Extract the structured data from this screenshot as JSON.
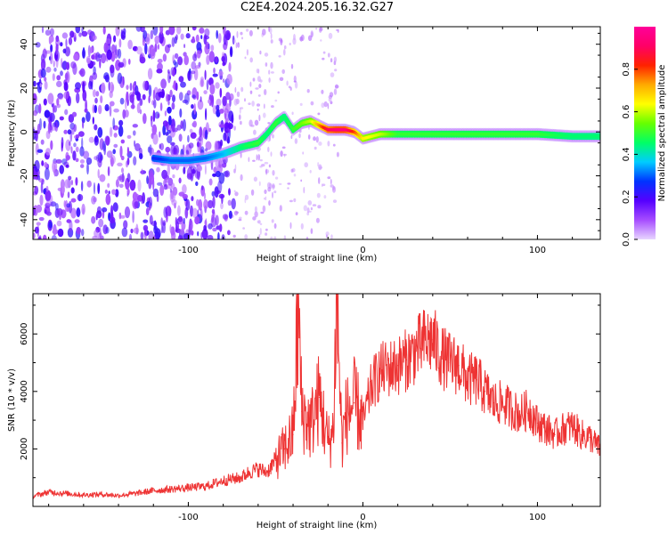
{
  "title": "C2E4.2024.205.16.32.G27",
  "chart_data": [
    {
      "type": "heatmap",
      "xlabel": "Height of straight line (km)",
      "ylabel": "Frequency (Hz)",
      "xlim": [
        -189,
        136
      ],
      "ylim": [
        -49,
        48
      ],
      "xticks": [
        -100,
        0,
        100
      ],
      "yticks": [
        -40,
        -20,
        0,
        20,
        40
      ],
      "xtick_labels": [
        "-100",
        "0",
        "100"
      ],
      "ytick_labels": [
        "-40",
        "-20",
        "0",
        "20",
        "40"
      ],
      "colorbar": {
        "label": "Normalized spectral amplitude",
        "range": [
          0,
          1
        ],
        "ticks": [
          0.0,
          0.2,
          0.4,
          0.6,
          0.8
        ],
        "tick_labels": [
          "0.0",
          "0.2",
          "0.4",
          "0.6",
          "0.8"
        ],
        "colors": [
          "#e8d5ff",
          "#a64dff",
          "#5500ff",
          "#0033ff",
          "#00ccff",
          "#00ff66",
          "#66ff00",
          "#ffff00",
          "#ffaa00",
          "#ff2200",
          "#ff0066",
          "#ff0099"
        ]
      },
      "ridge": {
        "x": [
          -120,
          -110,
          -100,
          -90,
          -80,
          -70,
          -60,
          -55,
          -50,
          -45,
          -40,
          -35,
          -30,
          -25,
          -20,
          -15,
          -10,
          -5,
          0,
          10,
          20,
          40,
          60,
          80,
          100,
          120,
          136
        ],
        "y": [
          -12,
          -13,
          -13,
          -12,
          -10,
          -7,
          -5,
          -1,
          4,
          7,
          1,
          4,
          5,
          3,
          1,
          1,
          1,
          0,
          -3,
          -1,
          -1,
          -1,
          -1,
          -1,
          -1,
          -2,
          -2
        ],
        "amplitude": [
          0.25,
          0.3,
          0.3,
          0.3,
          0.35,
          0.45,
          0.5,
          0.45,
          0.5,
          0.45,
          0.5,
          0.55,
          0.6,
          0.75,
          0.9,
          0.95,
          0.95,
          0.8,
          0.65,
          0.6,
          0.5,
          0.5,
          0.5,
          0.5,
          0.5,
          0.45,
          0.45
        ]
      }
    },
    {
      "type": "line",
      "xlabel": "Height of straight line (km)",
      "ylabel": "SNR (10 * v/v)",
      "xlim": [
        -189,
        136
      ],
      "ylim": [
        0,
        7400
      ],
      "xticks": [
        -100,
        0,
        100
      ],
      "yticks": [
        2000,
        4000,
        6000
      ],
      "xtick_labels": [
        "-100",
        "0",
        "100"
      ],
      "ytick_labels": [
        "2000",
        "4000",
        "6000"
      ],
      "color": "#ee3333",
      "series": [
        {
          "x": [
            -189,
            -180,
            -170,
            -160,
            -150,
            -140,
            -130,
            -120,
            -110,
            -100,
            -90,
            -80,
            -70,
            -65,
            -60,
            -55,
            -50,
            -45,
            -40,
            -37,
            -35,
            -30,
            -25,
            -20,
            -17,
            -15,
            -12,
            -10,
            -5,
            0,
            5,
            10,
            15,
            20,
            25,
            30,
            35,
            40,
            45,
            50,
            55,
            60,
            65,
            70,
            75,
            80,
            85,
            90,
            95,
            100,
            105,
            110,
            115,
            120,
            125,
            130,
            136
          ],
          "y": [
            350,
            500,
            450,
            400,
            420,
            380,
            450,
            550,
            600,
            650,
            700,
            900,
            1000,
            1200,
            1300,
            1200,
            1600,
            2000,
            2500,
            6800,
            3300,
            2800,
            3800,
            2200,
            2600,
            7400,
            2200,
            3100,
            3600,
            2900,
            4200,
            4700,
            4800,
            4900,
            5100,
            5400,
            5700,
            5800,
            5200,
            5000,
            4900,
            4400,
            4400,
            4000,
            3600,
            3600,
            3400,
            3200,
            3400,
            2900,
            2700,
            2500,
            2700,
            2800,
            2500,
            2400,
            2000
          ]
        }
      ]
    }
  ]
}
